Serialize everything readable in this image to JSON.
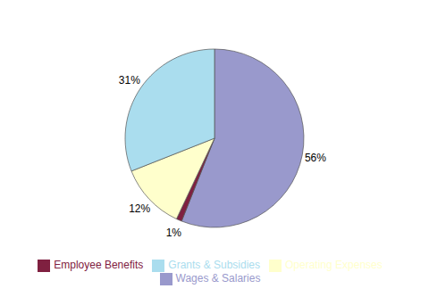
{
  "chart_data": {
    "type": "pie",
    "categories": [
      "Wages & Salaries",
      "Employee Benefits",
      "Operating Expenses",
      "Grants & Subsidies"
    ],
    "values": [
      56,
      1,
      12,
      31
    ],
    "value_labels": [
      "56%",
      "1%",
      "12%",
      "31%"
    ],
    "colors": [
      "#9999cc",
      "#7f2040",
      "#ffffcc",
      "#aaddee"
    ],
    "data_labels": true,
    "legend": "bottom"
  }
}
